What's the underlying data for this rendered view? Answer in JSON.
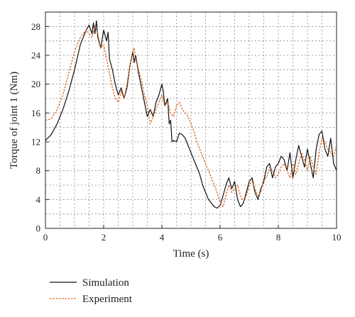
{
  "chart_data": {
    "type": "line",
    "xlabel": "Time (s)",
    "ylabel": "Torque of joint 1 (Nm)",
    "xlim": [
      0,
      10
    ],
    "ylim": [
      0,
      30
    ],
    "x_ticks": [
      0,
      2,
      4,
      6,
      8,
      10
    ],
    "y_ticks": [
      0,
      4,
      8,
      12,
      16,
      20,
      24,
      28
    ],
    "grid": true,
    "legend_position": "bottom-left, below plot",
    "series": [
      {
        "name": "Simulation",
        "color": "#111111",
        "style": "solid",
        "x": [
          0.0,
          0.2,
          0.4,
          0.6,
          0.8,
          1.0,
          1.2,
          1.4,
          1.5,
          1.6,
          1.65,
          1.7,
          1.75,
          1.8,
          1.9,
          2.0,
          2.1,
          2.15,
          2.2,
          2.3,
          2.4,
          2.5,
          2.6,
          2.7,
          2.8,
          2.9,
          3.0,
          3.05,
          3.1,
          3.2,
          3.3,
          3.4,
          3.5,
          3.6,
          3.7,
          3.8,
          3.9,
          4.0,
          4.05,
          4.1,
          4.2,
          4.25,
          4.3,
          4.35,
          4.4,
          4.5,
          4.6,
          4.7,
          4.8,
          4.9,
          5.0,
          5.1,
          5.2,
          5.3,
          5.4,
          5.5,
          5.6,
          5.7,
          5.8,
          5.9,
          6.0,
          6.1,
          6.2,
          6.3,
          6.4,
          6.5,
          6.6,
          6.7,
          6.8,
          6.9,
          7.0,
          7.1,
          7.2,
          7.3,
          7.4,
          7.5,
          7.6,
          7.7,
          7.8,
          7.9,
          8.0,
          8.1,
          8.2,
          8.3,
          8.4,
          8.5,
          8.6,
          8.7,
          8.8,
          8.9,
          9.0,
          9.1,
          9.2,
          9.3,
          9.4,
          9.5,
          9.6,
          9.7,
          9.8,
          9.9,
          10.0
        ],
        "y": [
          12.2,
          13.0,
          14.5,
          16.5,
          19.0,
          22.0,
          25.5,
          27.5,
          28.2,
          27.0,
          28.5,
          27.0,
          28.8,
          26.5,
          25.0,
          27.5,
          26.0,
          27.2,
          23.5,
          22.0,
          20.0,
          18.5,
          19.5,
          18.0,
          19.5,
          22.5,
          24.5,
          23.0,
          24.0,
          21.5,
          19.5,
          17.5,
          15.5,
          16.5,
          15.5,
          17.5,
          18.5,
          20.0,
          19.0,
          17.0,
          18.0,
          14.5,
          15.0,
          12.0,
          12.2,
          12.0,
          13.2,
          13.0,
          12.5,
          11.5,
          10.5,
          9.5,
          8.5,
          7.5,
          6.0,
          5.0,
          4.0,
          3.5,
          3.0,
          2.8,
          3.2,
          4.5,
          6.0,
          7.0,
          5.5,
          6.5,
          4.0,
          3.0,
          3.5,
          5.0,
          6.5,
          7.0,
          5.0,
          4.0,
          5.5,
          6.5,
          8.5,
          9.0,
          7.0,
          8.5,
          9.0,
          10.0,
          9.5,
          8.0,
          10.5,
          7.0,
          9.5,
          11.5,
          10.0,
          8.5,
          11.0,
          9.0,
          7.0,
          11.0,
          13.0,
          13.5,
          11.0,
          10.0,
          12.5,
          9.0,
          8.0
        ]
      },
      {
        "name": "Experiment",
        "color": "#e0611c",
        "style": "dashed",
        "x": [
          0.0,
          0.2,
          0.4,
          0.6,
          0.8,
          1.0,
          1.2,
          1.4,
          1.6,
          1.7,
          1.8,
          1.9,
          2.0,
          2.1,
          2.2,
          2.3,
          2.4,
          2.5,
          2.6,
          2.7,
          2.8,
          2.9,
          3.0,
          3.05,
          3.1,
          3.2,
          3.3,
          3.4,
          3.5,
          3.6,
          3.7,
          3.8,
          3.9,
          4.0,
          4.1,
          4.2,
          4.3,
          4.4,
          4.5,
          4.6,
          4.7,
          4.8,
          4.9,
          5.0,
          5.1,
          5.2,
          5.3,
          5.4,
          5.5,
          5.6,
          5.7,
          5.8,
          5.9,
          6.0,
          6.1,
          6.2,
          6.3,
          6.4,
          6.5,
          6.6,
          6.7,
          6.8,
          6.9,
          7.0,
          7.1,
          7.2,
          7.3,
          7.4,
          7.5,
          7.6,
          7.7,
          7.8,
          7.9,
          8.0,
          8.1,
          8.2,
          8.3,
          8.4,
          8.5,
          8.6,
          8.7,
          8.8,
          8.9,
          9.0,
          9.1,
          9.2,
          9.3,
          9.4,
          9.5,
          9.6,
          9.7,
          9.8,
          9.9,
          10.0
        ],
        "y": [
          15.0,
          15.2,
          16.5,
          18.5,
          21.5,
          24.5,
          26.5,
          27.5,
          26.5,
          28.0,
          27.0,
          25.0,
          25.5,
          23.5,
          21.5,
          19.5,
          18.0,
          17.5,
          19.0,
          18.0,
          20.0,
          22.5,
          24.5,
          25.0,
          23.5,
          22.0,
          20.5,
          18.5,
          17.0,
          14.5,
          15.5,
          16.5,
          17.5,
          18.5,
          17.0,
          17.5,
          16.0,
          15.5,
          17.0,
          17.5,
          16.5,
          16.0,
          15.5,
          14.5,
          13.5,
          12.0,
          11.0,
          10.0,
          9.0,
          8.0,
          7.0,
          6.0,
          5.0,
          3.5,
          3.0,
          4.5,
          6.0,
          5.0,
          5.5,
          6.0,
          4.5,
          3.8,
          4.5,
          6.0,
          6.5,
          5.5,
          4.5,
          5.0,
          7.0,
          7.0,
          8.5,
          8.0,
          7.0,
          7.5,
          8.5,
          9.0,
          8.0,
          7.0,
          9.0,
          7.5,
          9.0,
          10.5,
          9.5,
          8.0,
          10.0,
          8.5,
          7.5,
          10.5,
          12.5,
          12.0,
          11.0,
          10.5,
          10.0,
          11.5
        ]
      }
    ]
  }
}
